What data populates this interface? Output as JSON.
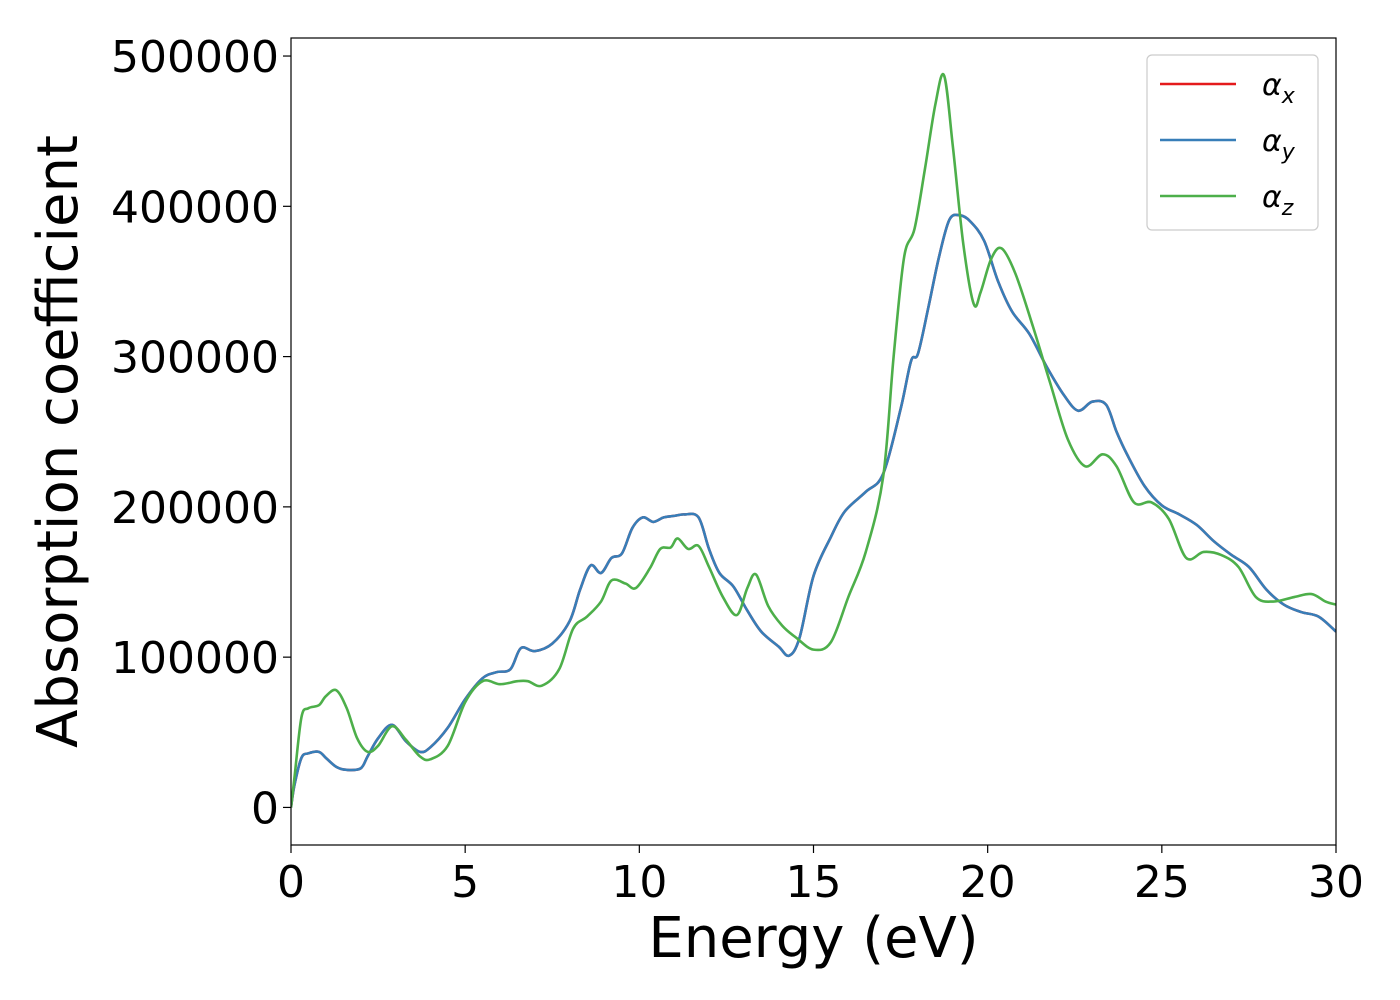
{
  "chart_data": {
    "type": "line",
    "title": "",
    "xlabel": "Energy (eV)",
    "ylabel": "Absorption coefficient",
    "xlim": [
      0,
      30
    ],
    "ylim": [
      -25000,
      512000
    ],
    "xticks": [
      0,
      5,
      10,
      15,
      20,
      25,
      30
    ],
    "yticks": [
      0,
      100000,
      200000,
      300000,
      400000,
      500000
    ],
    "xtick_labels": [
      "0",
      "5",
      "10",
      "15",
      "20",
      "25",
      "30"
    ],
    "ytick_labels": [
      "0",
      "100000",
      "200000",
      "300000",
      "400000",
      "500000"
    ],
    "grid": false,
    "legend_position": "top-right",
    "series": [
      {
        "name": "α_x",
        "label_main": "α",
        "label_sub": "x",
        "color": "#e41a1c",
        "x": [
          0,
          0.1,
          0.3,
          0.5,
          0.8,
          1.0,
          1.3,
          1.6,
          2.0,
          2.2,
          2.5,
          2.9,
          3.3,
          3.7,
          4.0,
          4.5,
          5.0,
          5.5,
          5.9,
          6.3,
          6.6,
          7.0,
          7.5,
          8.0,
          8.3,
          8.6,
          8.9,
          9.2,
          9.5,
          9.8,
          10.1,
          10.4,
          10.7,
          11.0,
          11.3,
          11.7,
          12.0,
          12.3,
          12.7,
          13.1,
          13.5,
          14.0,
          14.3,
          14.6,
          15.0,
          15.5,
          15.9,
          16.5,
          17.0,
          17.5,
          17.8,
          18.0,
          18.3,
          18.6,
          18.9,
          19.2,
          19.5,
          19.9,
          20.3,
          20.7,
          21.2,
          21.7,
          22.2,
          22.6,
          23.0,
          23.4,
          23.7,
          24.0,
          24.5,
          25.0,
          25.5,
          26.0,
          26.5,
          27.0,
          27.5,
          28.0,
          28.5,
          29.0,
          29.5,
          30.0
        ],
        "values": [
          0,
          15000,
          33000,
          36000,
          37000,
          33000,
          27000,
          25000,
          26000,
          34000,
          46000,
          55000,
          44000,
          37000,
          40000,
          53000,
          72000,
          86000,
          90000,
          92000,
          106000,
          104000,
          109000,
          124000,
          145000,
          161000,
          156000,
          166000,
          169000,
          186000,
          193000,
          190000,
          193000,
          194000,
          195000,
          193000,
          172000,
          156000,
          147000,
          131000,
          117000,
          107000,
          101000,
          113000,
          154000,
          180000,
          197000,
          210000,
          222000,
          265000,
          297000,
          302000,
          333000,
          366000,
          391000,
          394000,
          390000,
          377000,
          350000,
          330000,
          315000,
          293000,
          274000,
          264000,
          270000,
          268000,
          250000,
          235000,
          214000,
          201000,
          195000,
          188000,
          177000,
          168000,
          160000,
          145000,
          135000,
          130000,
          127000,
          117000
        ]
      },
      {
        "name": "α_y",
        "label_main": "α",
        "label_sub": "y",
        "color": "#377eb8",
        "x": [
          0,
          0.1,
          0.3,
          0.5,
          0.8,
          1.0,
          1.3,
          1.6,
          2.0,
          2.2,
          2.5,
          2.9,
          3.3,
          3.7,
          4.0,
          4.5,
          5.0,
          5.5,
          5.9,
          6.3,
          6.6,
          7.0,
          7.5,
          8.0,
          8.3,
          8.6,
          8.9,
          9.2,
          9.5,
          9.8,
          10.1,
          10.4,
          10.7,
          11.0,
          11.3,
          11.7,
          12.0,
          12.3,
          12.7,
          13.1,
          13.5,
          14.0,
          14.3,
          14.6,
          15.0,
          15.5,
          15.9,
          16.5,
          17.0,
          17.5,
          17.8,
          18.0,
          18.3,
          18.6,
          18.9,
          19.2,
          19.5,
          19.9,
          20.3,
          20.7,
          21.2,
          21.7,
          22.2,
          22.6,
          23.0,
          23.4,
          23.7,
          24.0,
          24.5,
          25.0,
          25.5,
          26.0,
          26.5,
          27.0,
          27.5,
          28.0,
          28.5,
          29.0,
          29.5,
          30.0
        ],
        "values": [
          0,
          15000,
          33000,
          36000,
          37000,
          33000,
          27000,
          25000,
          26000,
          34000,
          46000,
          55000,
          44000,
          37000,
          40000,
          53000,
          72000,
          86000,
          90000,
          92000,
          106000,
          104000,
          109000,
          124000,
          145000,
          161000,
          156000,
          166000,
          169000,
          186000,
          193000,
          190000,
          193000,
          194000,
          195000,
          193000,
          172000,
          156000,
          147000,
          131000,
          117000,
          107000,
          101000,
          113000,
          154000,
          180000,
          197000,
          210000,
          222000,
          265000,
          297000,
          302000,
          333000,
          366000,
          391000,
          394000,
          390000,
          377000,
          350000,
          330000,
          315000,
          293000,
          274000,
          264000,
          270000,
          268000,
          250000,
          235000,
          214000,
          201000,
          195000,
          188000,
          177000,
          168000,
          160000,
          145000,
          135000,
          130000,
          127000,
          117000
        ]
      },
      {
        "name": "α_z",
        "label_main": "α",
        "label_sub": "z",
        "color": "#4daf4a",
        "x": [
          0,
          0.1,
          0.3,
          0.5,
          0.8,
          1.0,
          1.3,
          1.6,
          1.9,
          2.2,
          2.5,
          2.9,
          3.3,
          3.7,
          4.0,
          4.5,
          5.0,
          5.5,
          6.0,
          6.5,
          6.8,
          7.2,
          7.7,
          8.1,
          8.5,
          8.9,
          9.2,
          9.6,
          9.9,
          10.3,
          10.6,
          10.9,
          11.1,
          11.4,
          11.7,
          12.0,
          12.4,
          12.8,
          13.1,
          13.35,
          13.7,
          14.1,
          14.5,
          15.0,
          15.5,
          16.0,
          16.5,
          17.0,
          17.3,
          17.6,
          17.9,
          18.2,
          18.5,
          18.75,
          19.0,
          19.3,
          19.6,
          19.8,
          20.1,
          20.4,
          20.8,
          21.3,
          21.8,
          22.3,
          22.8,
          23.3,
          23.7,
          24.2,
          24.7,
          25.2,
          25.7,
          26.2,
          26.7,
          27.2,
          27.7,
          28.2,
          28.8,
          29.3,
          29.7,
          30.0
        ],
        "values": [
          0,
          20000,
          60000,
          66000,
          68000,
          74000,
          78000,
          66000,
          46000,
          37000,
          41000,
          54000,
          45000,
          34000,
          32000,
          41000,
          70000,
          84000,
          82000,
          84000,
          84000,
          81000,
          92000,
          119000,
          127000,
          137000,
          151000,
          149000,
          146000,
          159000,
          172000,
          173000,
          179000,
          172000,
          174000,
          160000,
          140000,
          128000,
          146000,
          155000,
          134000,
          121000,
          113000,
          105000,
          110000,
          140000,
          170000,
          220000,
          300000,
          366000,
          385000,
          425000,
          468000,
          487000,
          440000,
          375000,
          335000,
          343000,
          365000,
          372000,
          355000,
          320000,
          282000,
          245000,
          227000,
          235000,
          227000,
          203000,
          203000,
          192000,
          166000,
          170000,
          168000,
          160000,
          140000,
          137000,
          140000,
          142000,
          137000,
          135000
        ]
      }
    ]
  }
}
